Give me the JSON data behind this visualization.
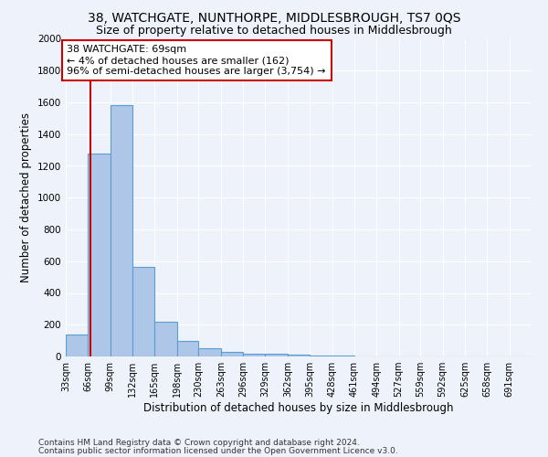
{
  "title": "38, WATCHGATE, NUNTHORPE, MIDDLESBROUGH, TS7 0QS",
  "subtitle": "Size of property relative to detached houses in Middlesbrough",
  "xlabel": "Distribution of detached houses by size in Middlesbrough",
  "ylabel": "Number of detached properties",
  "footnote1": "Contains HM Land Registry data © Crown copyright and database right 2024.",
  "footnote2": "Contains public sector information licensed under the Open Government Licence v3.0.",
  "bar_color": "#aec6e8",
  "bar_edge_color": "#5a9fd4",
  "annotation_box_text": "38 WATCHGATE: 69sqm\n← 4% of detached houses are smaller (162)\n96% of semi-detached houses are larger (3,754) →",
  "annotation_box_color": "#ffffff",
  "annotation_box_edge_color": "#cc0000",
  "vline_x": 69,
  "vline_color": "#cc0000",
  "bin_edges": [
    33,
    66,
    99,
    132,
    165,
    198,
    230,
    263,
    296,
    329,
    362,
    395,
    428,
    461,
    494,
    527,
    559,
    592,
    625,
    658,
    691,
    724
  ],
  "bar_heights": [
    140,
    1280,
    1580,
    565,
    220,
    95,
    50,
    30,
    20,
    15,
    10,
    5,
    3,
    2,
    1,
    1,
    0,
    0,
    0,
    0,
    0
  ],
  "ylim": [
    0,
    2000
  ],
  "xlim": [
    33,
    724
  ],
  "yticks": [
    0,
    200,
    400,
    600,
    800,
    1000,
    1200,
    1400,
    1600,
    1800,
    2000
  ],
  "tick_labels": [
    "33sqm",
    "66sqm",
    "99sqm",
    "132sqm",
    "165sqm",
    "198sqm",
    "230sqm",
    "263sqm",
    "296sqm",
    "329sqm",
    "362sqm",
    "395sqm",
    "428sqm",
    "461sqm",
    "494sqm",
    "527sqm",
    "559sqm",
    "592sqm",
    "625sqm",
    "658sqm",
    "691sqm"
  ],
  "background_color": "#eef2fb",
  "grid_color": "#ffffff",
  "title_fontsize": 10,
  "subtitle_fontsize": 9,
  "label_fontsize": 8.5,
  "tick_fontsize": 7,
  "footnote_fontsize": 6.5,
  "annotation_fontsize": 8
}
